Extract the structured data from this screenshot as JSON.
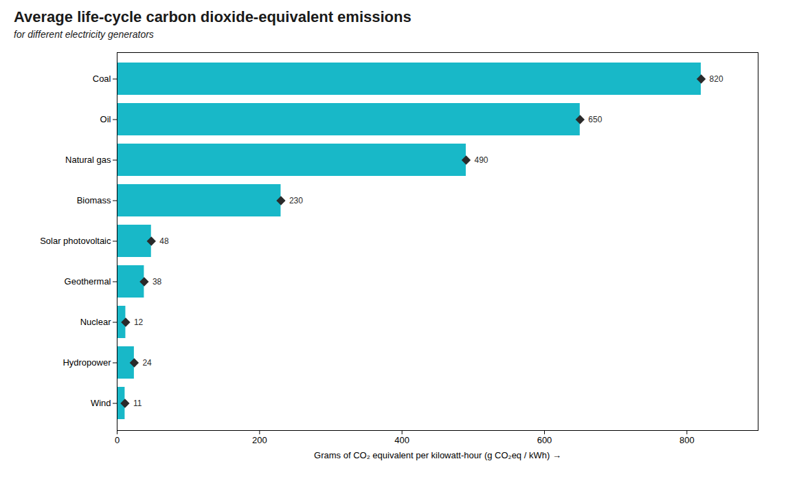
{
  "chart_data": {
    "type": "bar",
    "orientation": "horizontal",
    "title": "Average life-cycle carbon dioxide-equivalent emissions",
    "subtitle": "for different electricity generators",
    "xlabel": "Grams of CO₂ equivalent per kilowatt-hour (g CO₂eq / kWh)",
    "categories": [
      "Coal",
      "Oil",
      "Natural gas",
      "Biomass",
      "Solar photovoltaic",
      "Geothermal",
      "Nuclear",
      "Hydropower",
      "Wind"
    ],
    "values": [
      820,
      650,
      490,
      230,
      48,
      38,
      12,
      24,
      11
    ],
    "color": "#18b8c8",
    "marker": "diamond",
    "xlim": [
      0,
      900
    ],
    "xticks": [
      0,
      200,
      400,
      600,
      800
    ],
    "grid": false,
    "data_labels": true
  }
}
